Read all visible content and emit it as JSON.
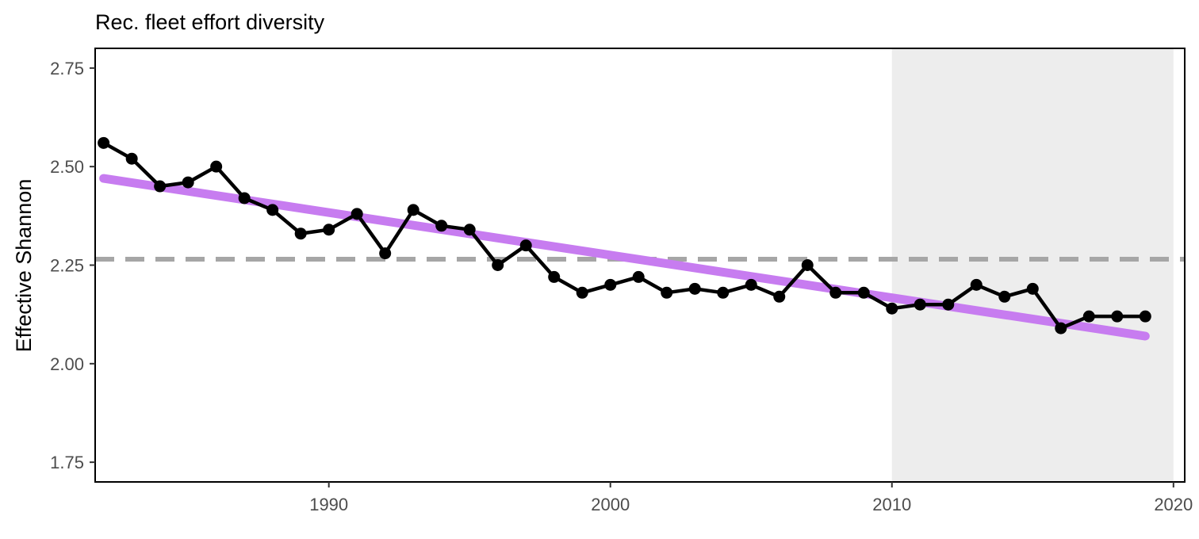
{
  "chart_data": {
    "type": "line",
    "title": "Rec. fleet effort diversity",
    "xlabel": "",
    "ylabel": "Effective Shannon",
    "xlim": [
      1981.7,
      2020.4
    ],
    "ylim": [
      1.7,
      2.8
    ],
    "x_ticks": [
      1990,
      2000,
      2010,
      2020
    ],
    "y_ticks": [
      1.75,
      2.0,
      2.25,
      2.5,
      2.75
    ],
    "y_tick_labels": [
      "1.75",
      "2.00",
      "2.25",
      "2.50",
      "2.75"
    ],
    "grid": false,
    "shaded_region": {
      "x_start": 2010,
      "x_end": 2020,
      "color": "#ededed"
    },
    "mean_line": {
      "y": 2.265,
      "style": "dashed",
      "color": "#a6a6a6"
    },
    "trend_line": {
      "x": [
        1982,
        2019
      ],
      "y": [
        2.47,
        2.07
      ],
      "color": "#c77cf0"
    },
    "series": [
      {
        "color": "#000000",
        "x": [
          1982,
          1983,
          1984,
          1985,
          1986,
          1987,
          1988,
          1989,
          1990,
          1991,
          1992,
          1993,
          1994,
          1995,
          1996,
          1997,
          1998,
          1999,
          2000,
          2001,
          2002,
          2003,
          2004,
          2005,
          2006,
          2007,
          2008,
          2009,
          2010,
          2011,
          2012,
          2013,
          2014,
          2015,
          2016,
          2017,
          2018,
          2019
        ],
        "y": [
          2.56,
          2.52,
          2.45,
          2.46,
          2.5,
          2.42,
          2.39,
          2.33,
          2.34,
          2.38,
          2.28,
          2.39,
          2.35,
          2.34,
          2.25,
          2.3,
          2.22,
          2.18,
          2.2,
          2.22,
          2.18,
          2.19,
          2.18,
          2.2,
          2.17,
          2.25,
          2.18,
          2.18,
          2.14,
          2.15,
          2.15,
          2.2,
          2.17,
          2.19,
          2.09,
          2.12,
          2.12,
          2.12
        ]
      }
    ]
  }
}
